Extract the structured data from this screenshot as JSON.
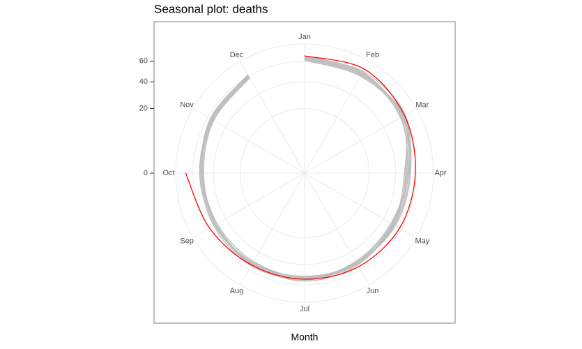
{
  "chart_data": {
    "type": "polar_line",
    "title": "Seasonal plot: deaths",
    "x_label": "Month",
    "categories": [
      "Jan",
      "Feb",
      "Mar",
      "Apr",
      "May",
      "Jun",
      "Jul",
      "Aug",
      "Sep",
      "Oct",
      "Nov",
      "Dec"
    ],
    "y_scale": "sqrt",
    "ylim": [
      0,
      80
    ],
    "yticks": [
      0,
      20,
      40,
      60
    ],
    "grid": true,
    "series": [
      {
        "color": "#bebebe",
        "values": [
          64,
          63,
          62,
          50,
          50,
          52,
          53,
          52,
          51,
          51,
          55,
          60
        ]
      },
      {
        "color": "#bebebe",
        "values": [
          62,
          61,
          64,
          52,
          49,
          51,
          55,
          53,
          50,
          50,
          54,
          59
        ]
      },
      {
        "color": "#bebebe",
        "values": [
          65,
          64,
          60,
          49,
          51,
          53,
          52,
          51,
          52,
          52,
          56,
          61
        ]
      },
      {
        "color": "#bebebe",
        "values": [
          63,
          62,
          63,
          51,
          48,
          50,
          54,
          54,
          51,
          49,
          53,
          58
        ]
      },
      {
        "color": "#bebebe",
        "values": [
          66,
          65,
          61,
          53,
          52,
          52,
          53,
          52,
          50,
          51,
          57,
          62
        ]
      },
      {
        "color": "#bebebe",
        "values": [
          61,
          60,
          62,
          48,
          50,
          54,
          56,
          53,
          52,
          53,
          55,
          60
        ]
      },
      {
        "color": "#bebebe",
        "values": [
          64,
          66,
          65,
          52,
          51,
          51,
          52,
          50,
          49,
          50,
          54,
          59
        ]
      },
      {
        "color": "#bebebe",
        "values": [
          63,
          63,
          59,
          50,
          49,
          53,
          54,
          55,
          53,
          52,
          56,
          61
        ]
      },
      {
        "color": "#bebebe",
        "values": [
          65,
          62,
          63,
          54,
          53,
          52,
          51,
          52,
          51,
          51,
          55,
          62
        ]
      },
      {
        "color": "#ff0000",
        "values": [
          66,
          69,
          64,
          59,
          58,
          56,
          54,
          54,
          58,
          68,
          null,
          null
        ]
      }
    ]
  }
}
